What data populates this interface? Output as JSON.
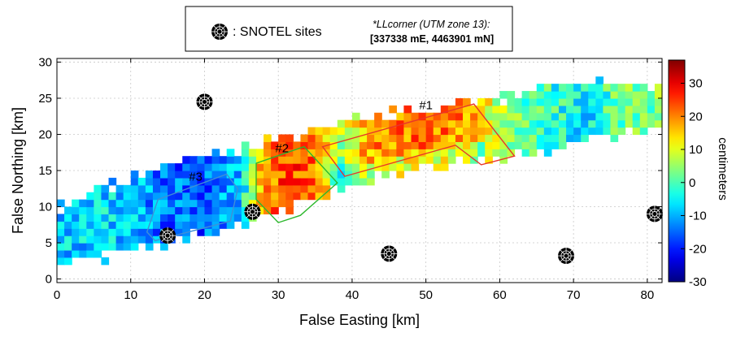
{
  "chart_data": {
    "type": "heatmap",
    "xlabel": "False Easting [km]",
    "ylabel": "False Northing [km]",
    "xlim": [
      0,
      82
    ],
    "ylim": [
      -0.5,
      30.5
    ],
    "xticks": [
      0,
      10,
      20,
      30,
      40,
      50,
      60,
      70,
      80
    ],
    "yticks": [
      0,
      5,
      10,
      15,
      20,
      25,
      30
    ],
    "grid": true,
    "colorbar": {
      "label": "centimeters",
      "min": -30,
      "max": 37,
      "ticks": [
        -30,
        -20,
        -10,
        0,
        10,
        20,
        30
      ],
      "colormap": "jet"
    },
    "legend": {
      "placement": "top-center",
      "marker_label": ": SNOTEL sites",
      "note_title": "*LLcorner (UTM zone 13):",
      "note_value": "[337338 mE, 4463901 mN]"
    },
    "snotel_sites": [
      {
        "x": 20.0,
        "y": 24.5
      },
      {
        "x": 15.0,
        "y": 6.0
      },
      {
        "x": 26.5,
        "y": 9.3
      },
      {
        "x": 45.0,
        "y": 3.5
      },
      {
        "x": 69.0,
        "y": 3.2
      },
      {
        "x": 81.0,
        "y": 9.0
      }
    ],
    "regions": [
      {
        "label": "#1",
        "color": "#e8352a",
        "label_x": 50,
        "label_y": 23.5,
        "polygon": [
          [
            36,
            18.3
          ],
          [
            56.5,
            24.2
          ],
          [
            62,
            17
          ],
          [
            57.5,
            15.8
          ],
          [
            54,
            18.5
          ],
          [
            39,
            14.2
          ]
        ]
      },
      {
        "label": "#2",
        "color": "#2db82d",
        "label_x": 30.5,
        "label_y": 17.5,
        "polygon": [
          [
            27,
            16
          ],
          [
            33.5,
            18.3
          ],
          [
            38,
            13.3
          ],
          [
            33,
            8.8
          ],
          [
            30,
            7.8
          ],
          [
            27,
            11
          ]
        ]
      },
      {
        "label": "#3",
        "color": "#3f8fd6",
        "label_x": 18.8,
        "label_y": 13.6,
        "polygon": [
          [
            13.7,
            11
          ],
          [
            23,
            14.5
          ],
          [
            24.5,
            12.5
          ],
          [
            23.5,
            8
          ],
          [
            13.3,
            5.3
          ],
          [
            12.2,
            6.5
          ]
        ]
      }
    ],
    "data_extent": {
      "note": "swath of snow-depth change pixels on a ~1 km grid",
      "centerline": [
        [
          0,
          6
        ],
        [
          10,
          9
        ],
        [
          20,
          11.5
        ],
        [
          30,
          14.5
        ],
        [
          40,
          17.5
        ],
        [
          50,
          19.5
        ],
        [
          60,
          21
        ],
        [
          70,
          23
        ],
        [
          81,
          24
        ]
      ],
      "halfwidth": [
        [
          0,
          4
        ],
        [
          10,
          5
        ],
        [
          20,
          5.5
        ],
        [
          30,
          5
        ],
        [
          40,
          4.5
        ],
        [
          50,
          4
        ],
        [
          60,
          4
        ],
        [
          70,
          4.5
        ],
        [
          81,
          3
        ]
      ],
      "value_profile": [
        [
          0,
          -9
        ],
        [
          8,
          -7
        ],
        [
          14,
          -14
        ],
        [
          20,
          -16
        ],
        [
          25,
          -8
        ],
        [
          28,
          20
        ],
        [
          31,
          24
        ],
        [
          35,
          22
        ],
        [
          38,
          4
        ],
        [
          42,
          18
        ],
        [
          50,
          22
        ],
        [
          56,
          18
        ],
        [
          60,
          6
        ],
        [
          67,
          -2
        ],
        [
          72,
          -6
        ],
        [
          76,
          2
        ],
        [
          81,
          4
        ]
      ]
    }
  }
}
